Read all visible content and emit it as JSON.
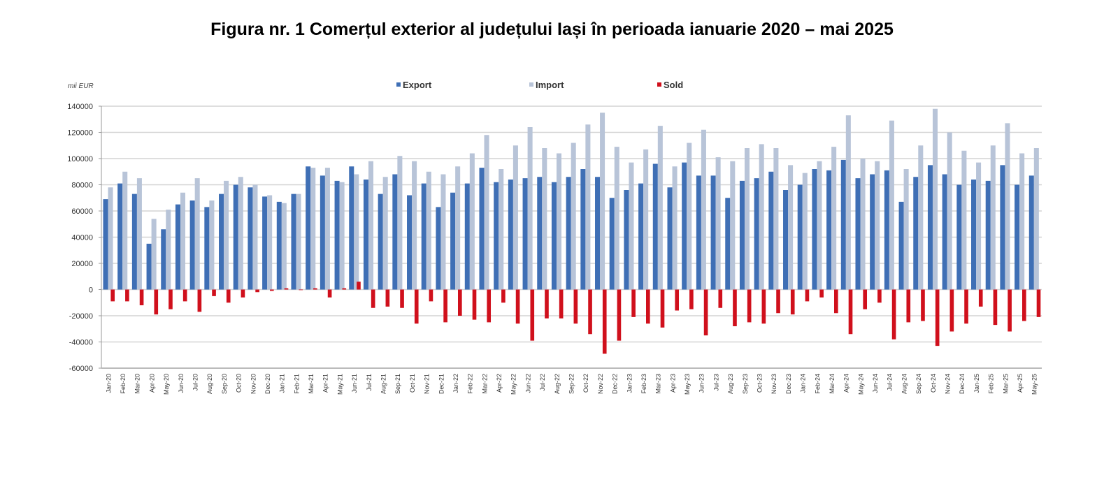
{
  "title": "Figura nr. 1 Comerțul exterior al județului Iași în perioada ianuarie 2020 – mai 2025",
  "chart_data": {
    "type": "bar",
    "title": "Figura nr. 1 Comerțul exterior al județului Iași în perioada ianuarie 2020 – mai 2025",
    "ylabel": "mii EUR",
    "xlabel": "",
    "ylim": [
      -60000,
      140000
    ],
    "yticks": [
      140000,
      120000,
      100000,
      80000,
      60000,
      40000,
      20000,
      0,
      -20000,
      -40000,
      -60000
    ],
    "grid": true,
    "legend_position": "top-center",
    "categories": [
      "Jan-20",
      "Feb-20",
      "Mar-20",
      "Apr-20",
      "May-20",
      "Jun-20",
      "Jul-20",
      "Aug-20",
      "Sep-20",
      "Oct-20",
      "Nov-20",
      "Dec-20",
      "Jan-21",
      "Feb-21",
      "Mar-21",
      "Apr-21",
      "May-21",
      "Jun-21",
      "Jul-21",
      "Aug-21",
      "Sep-21",
      "Oct-21",
      "Nov-21",
      "Dec-21",
      "Jan-22",
      "Feb-22",
      "Mar-22",
      "Apr-22",
      "May-22",
      "Jun-22",
      "Jul-22",
      "Aug-22",
      "Sep-22",
      "Oct-22",
      "Nov-22",
      "Dec-22",
      "Jan-23",
      "Feb-23",
      "Mar-23",
      "Apr-23",
      "May-23",
      "Jun-23",
      "Jul-23",
      "Aug-23",
      "Sep-23",
      "Oct-23",
      "Nov-23",
      "Dec-23",
      "Jan-24",
      "Feb-24",
      "Mar-24",
      "Apr-24",
      "May-24",
      "Jun-24",
      "Jul-24",
      "Aug-24",
      "Sep-24",
      "Oct-24",
      "Nov-24",
      "Dec-24",
      "Jan-25",
      "Feb-25",
      "Mar-25",
      "Apr-25",
      "May-25"
    ],
    "series": [
      {
        "name": "Export",
        "color": "#3f6fb5",
        "values": [
          69000,
          81000,
          73000,
          35000,
          46000,
          65000,
          68000,
          63000,
          73000,
          80000,
          78000,
          71000,
          67000,
          73000,
          94000,
          87000,
          83000,
          94000,
          84000,
          73000,
          88000,
          72000,
          81000,
          63000,
          74000,
          81000,
          93000,
          82000,
          84000,
          85000,
          86000,
          82000,
          86000,
          92000,
          86000,
          70000,
          76000,
          81000,
          96000,
          78000,
          97000,
          87000,
          87000,
          70000,
          83000,
          85000,
          90000,
          76000,
          80000,
          92000,
          91000,
          99000,
          85000,
          88000,
          91000,
          67000,
          86000,
          95000,
          88000,
          80000,
          84000,
          83000,
          95000,
          80000,
          87000
        ]
      },
      {
        "name": "Import",
        "color": "#b8c4d8",
        "values": [
          78000,
          90000,
          85000,
          54000,
          61000,
          74000,
          85000,
          68000,
          83000,
          86000,
          80000,
          72000,
          66000,
          73000,
          93000,
          93000,
          82000,
          88000,
          98000,
          86000,
          102000,
          98000,
          90000,
          88000,
          94000,
          104000,
          118000,
          92000,
          110000,
          124000,
          108000,
          104000,
          112000,
          126000,
          135000,
          109000,
          97000,
          107000,
          125000,
          94000,
          112000,
          122000,
          101000,
          98000,
          108000,
          111000,
          108000,
          95000,
          89000,
          98000,
          109000,
          133000,
          100000,
          98000,
          129000,
          92000,
          110000,
          138000,
          120000,
          106000,
          97000,
          110000,
          127000,
          104000,
          108000
        ]
      },
      {
        "name": "Sold",
        "color": "#d0101c",
        "values": [
          -9000,
          -9000,
          -12000,
          -19000,
          -15000,
          -9000,
          -17000,
          -5000,
          -10000,
          -6000,
          -2000,
          -1000,
          1000,
          0,
          1000,
          -6000,
          1000,
          6000,
          -14000,
          -13000,
          -14000,
          -26000,
          -9000,
          -25000,
          -20000,
          -23000,
          -25000,
          -10000,
          -26000,
          -39000,
          -22000,
          -22000,
          -26000,
          -34000,
          -49000,
          -39000,
          -21000,
          -26000,
          -29000,
          -16000,
          -15000,
          -35000,
          -14000,
          -28000,
          -25000,
          -26000,
          -18000,
          -19000,
          -9000,
          -6000,
          -18000,
          -34000,
          -15000,
          -10000,
          -38000,
          -25000,
          -24000,
          -43000,
          -32000,
          -26000,
          -13000,
          -27000,
          -32000,
          -24000,
          -21000
        ]
      }
    ]
  }
}
